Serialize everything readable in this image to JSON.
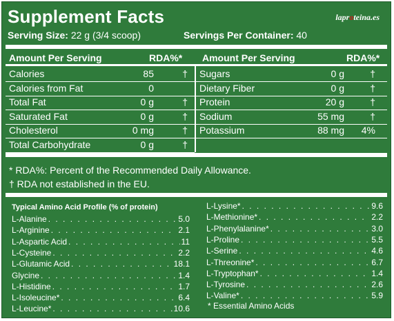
{
  "header": {
    "title": "Supplement Facts",
    "logo_left": "lapr",
    "logo_o": "o",
    "logo_right": "teina.es",
    "serving_size_label": "Serving Size:",
    "serving_size_value": "22 g (3/4 scoop)",
    "servings_per_container_label": "Servings Per Container:",
    "servings_per_container_value": "40"
  },
  "nutrition": {
    "headers": {
      "left_amount": "Amount Per Serving",
      "left_rda": "RDA%*",
      "right_amount": "Amount Per Serving",
      "right_rda": "RDA%*"
    },
    "left_rows": [
      {
        "name": "Calories",
        "value": "85",
        "rda": "†"
      },
      {
        "name": "Calories from Fat",
        "value": "0",
        "rda": ""
      },
      {
        "name": "Total Fat",
        "value": "0 g",
        "rda": "†"
      },
      {
        "name": "Saturated Fat",
        "value": "0 g",
        "rda": "†"
      },
      {
        "name": "Cholesterol",
        "value": "0 mg",
        "rda": "†"
      },
      {
        "name": "Total Carbohydrate",
        "value": "0 g",
        "rda": "†"
      }
    ],
    "right_rows": [
      {
        "name": "Sugars",
        "value": "0 g",
        "rda": "†"
      },
      {
        "name": "Dietary Fiber",
        "value": "0 g",
        "rda": "†"
      },
      {
        "name": "Protein",
        "value": "20 g",
        "rda": "†"
      },
      {
        "name": "Sodium",
        "value": "55 mg",
        "rda": "†"
      },
      {
        "name": "Potassium",
        "value": "88 mg",
        "rda": "4%"
      }
    ]
  },
  "notes": {
    "rda_note": "* RDA%: Percent of the Recommended Daily Allowance.",
    "eu_note": "† RDA not established in the EU."
  },
  "amino": {
    "title": "Typical Amino Acid Profile (% of protein)",
    "left": [
      {
        "name": "L-Alanine",
        "value": "5.0"
      },
      {
        "name": "L-Arginine",
        "value": "2.1"
      },
      {
        "name": "L-Aspartic Acid",
        "value": "11"
      },
      {
        "name": "L-Cysteine",
        "value": "2.2"
      },
      {
        "name": "L-Glutamic Acid",
        "value": "18.1"
      },
      {
        "name": "Glycine",
        "value": "1.4"
      },
      {
        "name": "L-Histidine",
        "value": "1.7"
      },
      {
        "name": "L-Isoleucine*",
        "value": "6.4"
      },
      {
        "name": "L-Leucine*",
        "value": "10.6"
      }
    ],
    "right": [
      {
        "name": "L-Lysine*",
        "value": "9.6"
      },
      {
        "name": "L-Methionine*",
        "value": "2.2"
      },
      {
        "name": "L-Phenylalanine*",
        "value": "3.0"
      },
      {
        "name": "L-Proline",
        "value": "5.5"
      },
      {
        "name": "L-Serine",
        "value": "4.6"
      },
      {
        "name": "L-Threonine*",
        "value": "6.7"
      },
      {
        "name": "L-Tryptophan*",
        "value": "1.4"
      },
      {
        "name": "L-Tyrosine",
        "value": "2.6"
      },
      {
        "name": "L-Valine*",
        "value": "5.9"
      }
    ],
    "essential_note": "* Essential Amino Acids"
  }
}
